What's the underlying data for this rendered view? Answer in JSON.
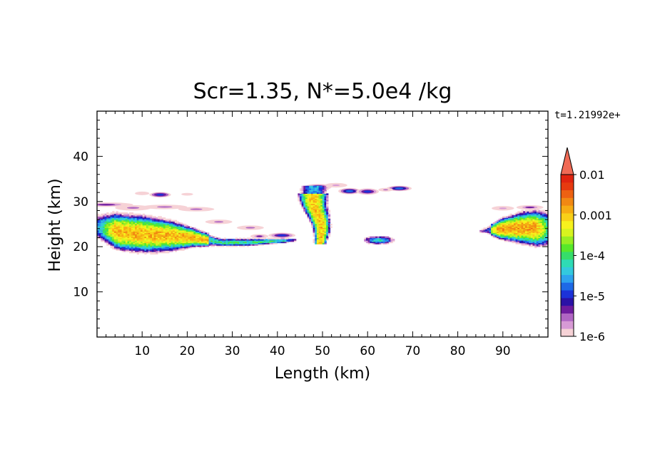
{
  "chart_data": {
    "type": "heatmap",
    "title": "Scr=1.35, N*=5.0e4 /kg",
    "time_label": "t=1.21992e+",
    "xlabel": "Length  (km)",
    "ylabel": "Height  (km)",
    "xlim": [
      0,
      100
    ],
    "ylim": [
      0,
      50
    ],
    "x_ticks": [
      10,
      20,
      30,
      40,
      50,
      60,
      70,
      80,
      90
    ],
    "y_ticks": [
      10,
      20,
      30,
      40
    ],
    "grid": false,
    "colorbar": {
      "scale": "log",
      "range": [
        1e-06,
        0.01
      ],
      "labels": [
        "0.01",
        "0.001",
        "1e-4",
        "1e-5",
        "1e-6"
      ],
      "label_values": [
        0.01,
        0.001,
        0.0001,
        1e-05,
        1e-06
      ],
      "extend": "max",
      "colors": [
        "#f6d2d6",
        "#d79ad5",
        "#b066c3",
        "#6e1c9e",
        "#2a12a6",
        "#1c32d8",
        "#1e69e6",
        "#2ea3ee",
        "#33c9de",
        "#2edbb5",
        "#36dd6a",
        "#57e82a",
        "#98ee23",
        "#d7f41f",
        "#f7f21d",
        "#f8d018",
        "#f6ac14",
        "#f18813",
        "#ed6112",
        "#e63a10",
        "#e02410"
      ],
      "extend_color": "#f06a55"
    },
    "features": [
      {
        "type": "band",
        "x": [
          0,
          44
        ],
        "z_bottom": [
          21,
          19,
          18.5,
          19,
          20,
          20,
          20,
          20.5,
          21
        ],
        "z_top": [
          28,
          27.5,
          27,
          26,
          24,
          22,
          22,
          22,
          22
        ],
        "peak_log": -2.9
      },
      {
        "type": "plume",
        "x": [
          47,
          53
        ],
        "z": [
          21,
          33
        ],
        "peak_log": -3.0
      },
      {
        "type": "patch",
        "x": [
          59,
          66
        ],
        "z": [
          21,
          22
        ],
        "peak_log": -4.2
      },
      {
        "type": "band",
        "x": [
          85,
          100
        ],
        "z_bottom": [
          23,
          21.5,
          20.5,
          19.5
        ],
        "z_top": [
          24,
          26.5,
          28,
          28.5
        ],
        "peak_log": -2.8
      },
      {
        "type": "wisps",
        "x": [
          0,
          71
        ],
        "z": [
          29,
          34
        ],
        "peak_log": -5.3
      }
    ]
  }
}
